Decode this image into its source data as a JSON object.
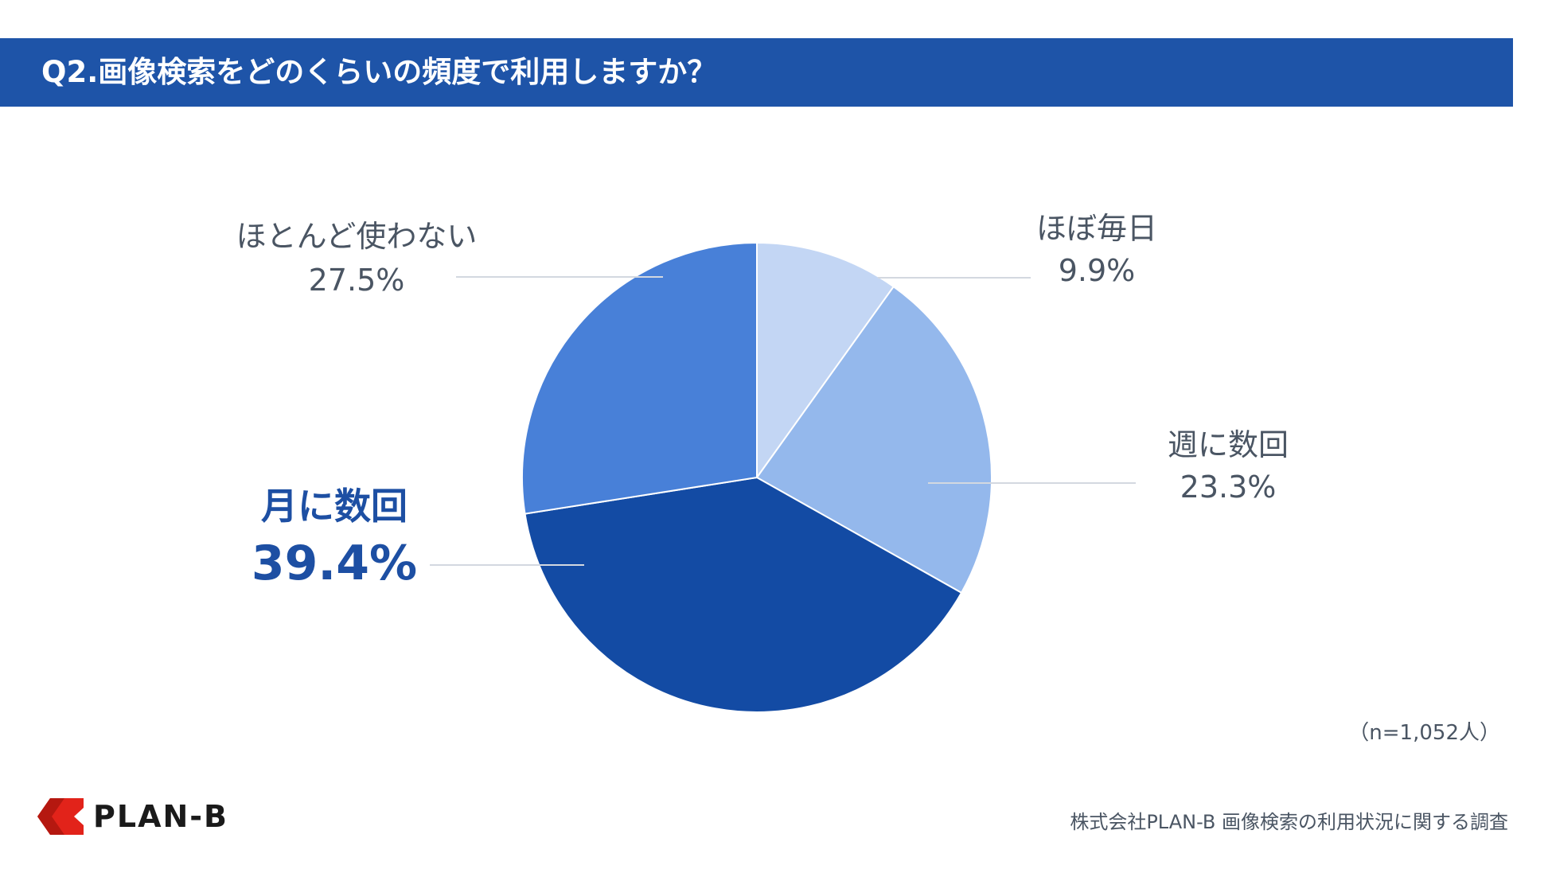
{
  "header": {
    "title": "Q2.画像検索をどのくらいの頻度で利用しますか？"
  },
  "chart_data": {
    "type": "pie",
    "categories": [
      "ほぼ毎日",
      "週に数回",
      "月に数回",
      "ほとんど使わない"
    ],
    "values": [
      9.9,
      23.3,
      39.4,
      27.5
    ],
    "value_labels": [
      "9.9%",
      "23.3%",
      "39.4%",
      "27.5%"
    ],
    "colors": [
      "#c3d6f4",
      "#94b8ec",
      "#134ba4",
      "#4880d8"
    ],
    "highlight": "月に数回",
    "start": "12 o'clock",
    "direction": "clockwise"
  },
  "notes": {
    "sample_size": "（n=1,052人）",
    "source": "株式会社PLAN-B  画像検索の利用状況に関する調査"
  },
  "logo": {
    "text": "PLAN-B",
    "mark_color": "#e2231a"
  },
  "colors": {
    "header_bg": "#1e54a8",
    "leader_line": "#d3d8e0"
  }
}
